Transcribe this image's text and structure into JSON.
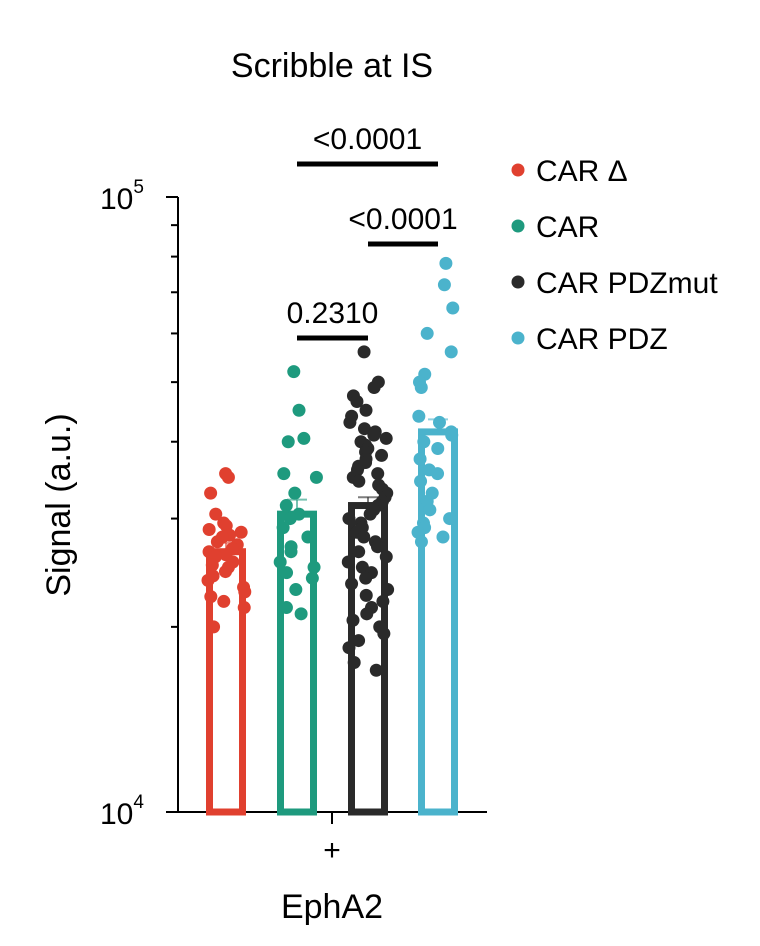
{
  "chart_data": {
    "type": "bar",
    "title": "Scribble at IS",
    "xlabel": "EphA2",
    "ylabel": "Signal (a.u.)",
    "yscale": "log",
    "ylim": [
      10000,
      100000
    ],
    "ytick_labels": [
      {
        "base": "10",
        "exp": "5",
        "value": 100000
      },
      {
        "base": "10",
        "exp": "4",
        "value": 10000
      }
    ],
    "categories": [
      "+"
    ],
    "legend_position": "top-right",
    "series": [
      {
        "name": "CAR Δ",
        "color": "#e0402f",
        "mean": 26500,
        "sem": 900,
        "points": [
          35500,
          35000,
          33000,
          30500,
          29500,
          29200,
          28800,
          28500,
          28200,
          28000,
          27500,
          27200,
          26800,
          26500,
          26200,
          26000,
          25500,
          25200,
          25000,
          24600,
          24200,
          23800,
          23200,
          22800,
          22400,
          22000,
          21500,
          20000
        ]
      },
      {
        "name": "CAR",
        "color": "#1e9a7e",
        "mean": 30500,
        "sem": 1700,
        "points": [
          52000,
          45000,
          40500,
          40000,
          35500,
          35000,
          33000,
          31500,
          30500,
          30000,
          29000,
          28000,
          27000,
          26500,
          25500,
          25000,
          24500,
          24000,
          23000,
          21500,
          21000
        ]
      },
      {
        "name": "CAR PDZmut",
        "color": "#2a2a2a",
        "mean": 31500,
        "sem": 1000,
        "points": [
          56000,
          50000,
          49000,
          47500,
          46500,
          45000,
          44000,
          43000,
          42000,
          41500,
          41000,
          40500,
          40000,
          39500,
          39000,
          38500,
          38000,
          37500,
          37000,
          36500,
          36000,
          35500,
          35000,
          34500,
          34000,
          33500,
          33000,
          32500,
          32000,
          31500,
          31000,
          30500,
          30000,
          29500,
          29000,
          28500,
          28000,
          27500,
          27000,
          26500,
          26000,
          25500,
          25000,
          24500,
          24000,
          23500,
          23000,
          22500,
          22000,
          21500,
          21000,
          20500,
          20000,
          19500,
          19000,
          18500,
          17500,
          17000
        ]
      },
      {
        "name": "CAR PDZ",
        "color": "#4bb3cc",
        "mean": 41500,
        "sem": 2000,
        "points": [
          78000,
          72000,
          66000,
          60000,
          56000,
          51500,
          50000,
          49000,
          44000,
          43000,
          41500,
          41000,
          40000,
          39000,
          37500,
          36000,
          35500,
          34500,
          33000,
          32000,
          31000,
          30000,
          29500,
          29000,
          28500,
          28000,
          27500
        ]
      }
    ],
    "comparisons": [
      {
        "between": [
          "CAR",
          "CAR PDZmut"
        ],
        "label": "0.2310"
      },
      {
        "between": [
          "CAR PDZmut",
          "CAR PDZ"
        ],
        "label": "<0.0001"
      },
      {
        "between": [
          "CAR",
          "CAR PDZ"
        ],
        "label": "<0.0001"
      }
    ]
  }
}
